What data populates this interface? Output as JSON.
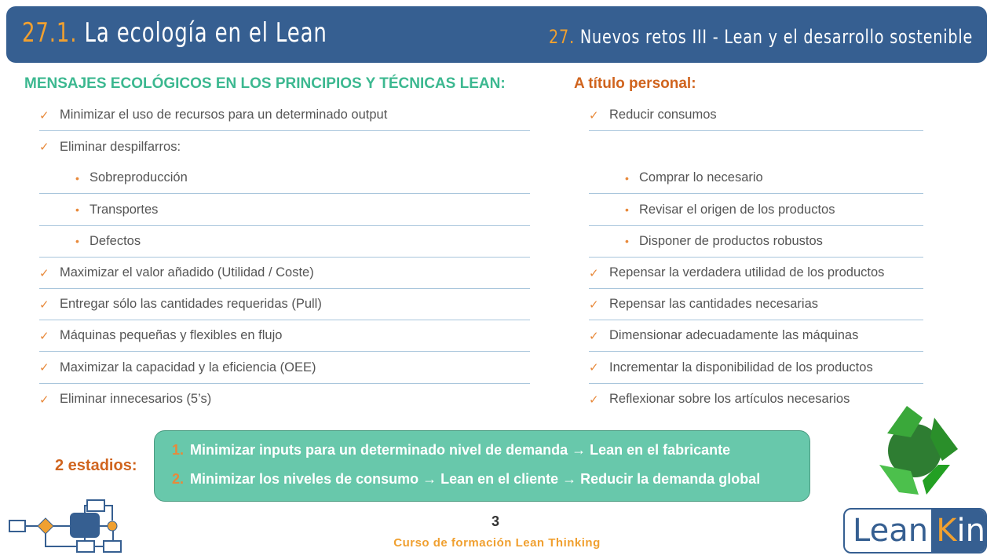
{
  "header": {
    "section_number": "27.1.",
    "section_title": "La ecología en el Lean",
    "chapter_number": "27.",
    "chapter_title": "Nuevos retos III - Lean y el desarrollo sostenible"
  },
  "left": {
    "heading": "MENSAJES ECOLÓGICOS EN LOS PRINCIPIOS Y TÉCNICAS LEAN:",
    "items": [
      {
        "type": "check",
        "text": "Minimizar el uso de recursos para un determinado output"
      },
      {
        "type": "check",
        "text": "Eliminar despilfarros:"
      },
      {
        "type": "bullet",
        "text": "Sobreproducción"
      },
      {
        "type": "bullet",
        "text": "Transportes"
      },
      {
        "type": "bullet",
        "text": "Defectos"
      },
      {
        "type": "check",
        "text": "Maximizar el valor añadido (Utilidad / Coste)"
      },
      {
        "type": "check",
        "text": "Entregar sólo las cantidades requeridas (Pull)"
      },
      {
        "type": "check",
        "text": "Máquinas pequeñas y flexibles en flujo"
      },
      {
        "type": "check",
        "text": "Maximizar la capacidad y la eficiencia (OEE)"
      },
      {
        "type": "check",
        "text": "Eliminar innecesarios (5’s)"
      }
    ]
  },
  "right": {
    "heading": "A título personal:",
    "items": [
      {
        "type": "check",
        "text": "Reducir consumos"
      },
      {
        "type": "empty",
        "text": ""
      },
      {
        "type": "bullet",
        "text": "Comprar lo necesario"
      },
      {
        "type": "bullet",
        "text": "Revisar el origen de los productos"
      },
      {
        "type": "bullet",
        "text": "Disponer de productos robustos"
      },
      {
        "type": "check",
        "text": "Repensar la verdadera utilidad de los productos"
      },
      {
        "type": "check",
        "text": "Repensar las cantidades necesarias"
      },
      {
        "type": "check",
        "text": "Dimensionar adecuadamente las máquinas"
      },
      {
        "type": "check",
        "text": "Incrementar la disponibilidad de los productos"
      },
      {
        "type": "check",
        "text": "Reflexionar sobre los artículos necesarios"
      }
    ]
  },
  "stages": {
    "label": "2 estadios:",
    "items": [
      {
        "n": "1.",
        "text": "Minimizar inputs para un determinado nivel de demanda → Lean en el fabricante"
      },
      {
        "n": "2.",
        "text": "Minimizar los niveles de consumo → Lean en el cliente → Reducir la demanda global"
      }
    ]
  },
  "footer": {
    "page": "3",
    "course": "Curso de formación Lean Thinking"
  },
  "logo": {
    "part1": "Lean",
    "part2_k": "K",
    "part2_rest": "in"
  },
  "icons": {
    "check": "✓",
    "bullet": "•"
  },
  "colors": {
    "header": "#365f91",
    "accent_orange": "#f0a030",
    "heading_green": "#3cb890",
    "heading_orange": "#d0641e",
    "box": "#68c8ab"
  }
}
